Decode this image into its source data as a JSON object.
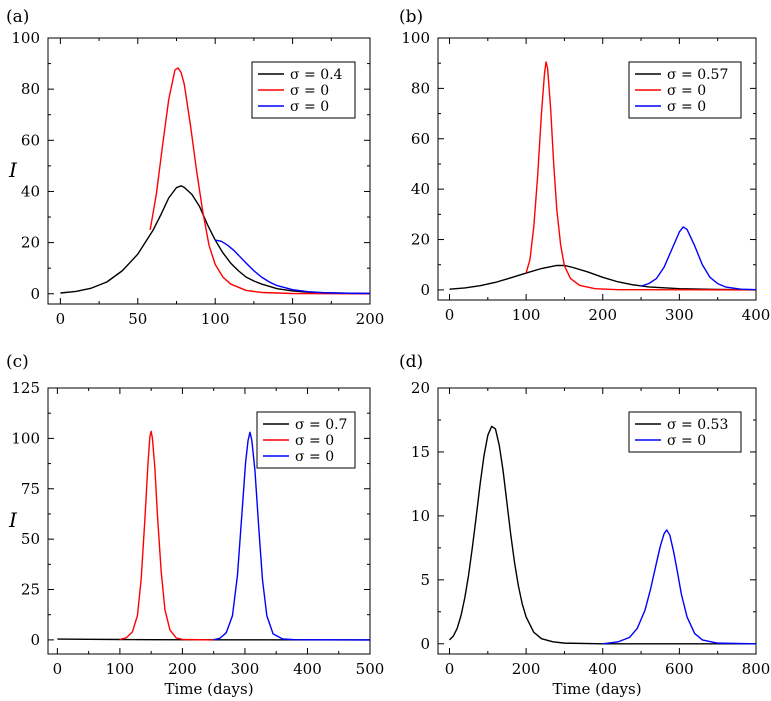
{
  "chart_data": [
    {
      "type": "line",
      "panel_label": "(a)",
      "xlabel": "",
      "ylabel": "I",
      "xlim": [
        -8,
        200
      ],
      "ylim": [
        -4,
        100
      ],
      "x_ticks": [
        0,
        50,
        100,
        150,
        200
      ],
      "y_ticks": [
        0,
        20,
        40,
        60,
        80,
        100
      ],
      "legend_position": "top-right",
      "series": [
        {
          "name": "σ = 0.4",
          "color": "#000000",
          "points": [
            [
              0,
              0.3
            ],
            [
              10,
              0.9
            ],
            [
              20,
              2.2
            ],
            [
              30,
              4.6
            ],
            [
              40,
              9.0
            ],
            [
              50,
              15.5
            ],
            [
              60,
              25.0
            ],
            [
              65,
              31.0
            ],
            [
              70,
              37.5
            ],
            [
              75,
              41.5
            ],
            [
              78,
              42.2
            ],
            [
              80,
              41.6
            ],
            [
              85,
              38.8
            ],
            [
              90,
              34.0
            ],
            [
              95,
              27.0
            ],
            [
              100,
              21.0
            ],
            [
              105,
              16.0
            ],
            [
              110,
              12.0
            ],
            [
              115,
              9.0
            ],
            [
              120,
              6.5
            ],
            [
              125,
              5.0
            ],
            [
              130,
              3.8
            ],
            [
              140,
              2.0
            ],
            [
              150,
              1.1
            ],
            [
              160,
              0.6
            ],
            [
              175,
              0.3
            ],
            [
              200,
              0.1
            ]
          ]
        },
        {
          "name": "σ = 0",
          "color": "#ff0000",
          "points": [
            [
              58,
              25.0
            ],
            [
              62,
              39.0
            ],
            [
              66,
              58.0
            ],
            [
              70,
              76.0
            ],
            [
              74,
              87.5
            ],
            [
              76,
              88.3
            ],
            [
              78,
              86.5
            ],
            [
              80,
              82.0
            ],
            [
              84,
              66.0
            ],
            [
              88,
              48.0
            ],
            [
              92,
              32.0
            ],
            [
              96,
              19.0
            ],
            [
              100,
              11.5
            ],
            [
              105,
              6.5
            ],
            [
              110,
              3.8
            ],
            [
              120,
              1.3
            ],
            [
              130,
              0.5
            ],
            [
              150,
              0.1
            ],
            [
              200,
              0.0
            ]
          ]
        },
        {
          "name": "σ = 0",
          "color": "#0000ff",
          "points": [
            [
              100,
              21.0
            ],
            [
              104,
              20.5
            ],
            [
              108,
              19.0
            ],
            [
              112,
              17.0
            ],
            [
              116,
              14.5
            ],
            [
              120,
              12.0
            ],
            [
              125,
              9.0
            ],
            [
              130,
              6.5
            ],
            [
              135,
              4.6
            ],
            [
              140,
              3.2
            ],
            [
              150,
              1.6
            ],
            [
              160,
              0.8
            ],
            [
              170,
              0.4
            ],
            [
              185,
              0.2
            ],
            [
              200,
              0.1
            ]
          ]
        }
      ]
    },
    {
      "type": "line",
      "panel_label": "(b)",
      "xlabel": "",
      "ylabel": "",
      "xlim": [
        -15,
        400
      ],
      "ylim": [
        -4,
        100
      ],
      "x_ticks": [
        0,
        100,
        200,
        300,
        400
      ],
      "y_ticks": [
        0,
        20,
        40,
        60,
        80,
        100
      ],
      "legend_position": "top-right",
      "series": [
        {
          "name": "σ = 0.57",
          "color": "#000000",
          "points": [
            [
              0,
              0.3
            ],
            [
              20,
              0.8
            ],
            [
              40,
              1.7
            ],
            [
              60,
              3.0
            ],
            [
              80,
              4.8
            ],
            [
              100,
              6.7
            ],
            [
              120,
              8.5
            ],
            [
              140,
              9.7
            ],
            [
              150,
              9.7
            ],
            [
              160,
              9.0
            ],
            [
              180,
              7.2
            ],
            [
              200,
              5.0
            ],
            [
              220,
              3.2
            ],
            [
              240,
              2.0
            ],
            [
              260,
              1.2
            ],
            [
              300,
              0.5
            ],
            [
              350,
              0.2
            ],
            [
              400,
              0.1
            ]
          ]
        },
        {
          "name": "σ = 0",
          "color": "#ff0000",
          "points": [
            [
              100,
              6.7
            ],
            [
              105,
              12.0
            ],
            [
              110,
              25.0
            ],
            [
              115,
              45.0
            ],
            [
              120,
              70.0
            ],
            [
              124,
              86.0
            ],
            [
              126,
              90.5
            ],
            [
              128,
              88.0
            ],
            [
              132,
              72.0
            ],
            [
              136,
              50.0
            ],
            [
              140,
              32.0
            ],
            [
              145,
              18.0
            ],
            [
              150,
              9.5
            ],
            [
              158,
              4.5
            ],
            [
              170,
              1.8
            ],
            [
              190,
              0.5
            ],
            [
              220,
              0.1
            ],
            [
              400,
              0.0
            ]
          ]
        },
        {
          "name": "σ = 0",
          "color": "#0000ff",
          "points": [
            [
              250,
              1.5
            ],
            [
              260,
              2.5
            ],
            [
              270,
              4.5
            ],
            [
              280,
              9.0
            ],
            [
              290,
              16.0
            ],
            [
              300,
              23.0
            ],
            [
              305,
              25.0
            ],
            [
              310,
              24.0
            ],
            [
              320,
              17.5
            ],
            [
              330,
              10.0
            ],
            [
              340,
              5.0
            ],
            [
              350,
              2.5
            ],
            [
              360,
              1.2
            ],
            [
              380,
              0.3
            ],
            [
              400,
              0.1
            ]
          ]
        }
      ]
    },
    {
      "type": "line",
      "panel_label": "(c)",
      "xlabel": "Time (days)",
      "ylabel": "I",
      "xlim": [
        -15,
        500
      ],
      "ylim": [
        -7,
        125
      ],
      "x_ticks": [
        0,
        100,
        200,
        300,
        400,
        500
      ],
      "y_ticks": [
        0,
        25,
        50,
        75,
        100,
        125
      ],
      "legend_position": "top-right",
      "series": [
        {
          "name": "σ = 0.7",
          "color": "#000000",
          "points": [
            [
              0,
              0.4
            ],
            [
              50,
              0.3
            ],
            [
              100,
              0.2
            ],
            [
              150,
              0.1
            ],
            [
              250,
              0.05
            ],
            [
              500,
              0.0
            ]
          ]
        },
        {
          "name": "σ = 0",
          "color": "#ff0000",
          "points": [
            [
              100,
              0.2
            ],
            [
              110,
              1.0
            ],
            [
              120,
              4.0
            ],
            [
              128,
              12.0
            ],
            [
              134,
              30.0
            ],
            [
              140,
              60.0
            ],
            [
              145,
              88.0
            ],
            [
              148,
              101.0
            ],
            [
              150,
              103.5
            ],
            [
              152,
              100.0
            ],
            [
              156,
              85.0
            ],
            [
              160,
              62.0
            ],
            [
              166,
              34.0
            ],
            [
              172,
              15.0
            ],
            [
              180,
              5.0
            ],
            [
              190,
              1.0
            ],
            [
              200,
              0.2
            ],
            [
              250,
              0.0
            ]
          ]
        },
        {
          "name": "σ = 0",
          "color": "#0000ff",
          "points": [
            [
              250,
              0.1
            ],
            [
              260,
              0.8
            ],
            [
              270,
              3.5
            ],
            [
              280,
              12.0
            ],
            [
              288,
              32.0
            ],
            [
              295,
              62.0
            ],
            [
              301,
              88.0
            ],
            [
              305,
              99.0
            ],
            [
              308,
              103.0
            ],
            [
              311,
              99.0
            ],
            [
              316,
              84.0
            ],
            [
              322,
              56.0
            ],
            [
              328,
              30.0
            ],
            [
              335,
              12.0
            ],
            [
              345,
              3.0
            ],
            [
              360,
              0.5
            ],
            [
              380,
              0.1
            ],
            [
              500,
              0.0
            ]
          ]
        }
      ]
    },
    {
      "type": "line",
      "panel_label": "(d)",
      "xlabel": "Time (days)",
      "ylabel": "",
      "xlim": [
        -30,
        800
      ],
      "ylim": [
        -0.8,
        20
      ],
      "x_ticks": [
        0,
        200,
        400,
        600,
        800
      ],
      "y_ticks": [
        0,
        5,
        10,
        15,
        20
      ],
      "legend_position": "top-right",
      "series": [
        {
          "name": "σ = 0.53",
          "color": "#000000",
          "points": [
            [
              0,
              0.3
            ],
            [
              10,
              0.6
            ],
            [
              20,
              1.2
            ],
            [
              30,
              2.2
            ],
            [
              40,
              3.6
            ],
            [
              50,
              5.4
            ],
            [
              60,
              7.6
            ],
            [
              70,
              10.0
            ],
            [
              80,
              12.5
            ],
            [
              90,
              14.7
            ],
            [
              100,
              16.3
            ],
            [
              110,
              17.0
            ],
            [
              120,
              16.8
            ],
            [
              130,
              15.5
            ],
            [
              140,
              13.5
            ],
            [
              150,
              11.0
            ],
            [
              160,
              8.5
            ],
            [
              170,
              6.3
            ],
            [
              180,
              4.5
            ],
            [
              190,
              3.1
            ],
            [
              200,
              2.1
            ],
            [
              220,
              0.9
            ],
            [
              240,
              0.4
            ],
            [
              270,
              0.15
            ],
            [
              300,
              0.05
            ],
            [
              400,
              0.0
            ],
            [
              800,
              0.0
            ]
          ]
        },
        {
          "name": "σ = 0",
          "color": "#0000ff",
          "points": [
            [
              400,
              0.0
            ],
            [
              440,
              0.15
            ],
            [
              470,
              0.5
            ],
            [
              490,
              1.2
            ],
            [
              510,
              2.6
            ],
            [
              525,
              4.3
            ],
            [
              540,
              6.3
            ],
            [
              550,
              7.6
            ],
            [
              560,
              8.6
            ],
            [
              567,
              8.9
            ],
            [
              575,
              8.5
            ],
            [
              585,
              7.2
            ],
            [
              595,
              5.6
            ],
            [
              605,
              3.9
            ],
            [
              620,
              2.1
            ],
            [
              640,
              0.8
            ],
            [
              660,
              0.3
            ],
            [
              700,
              0.05
            ],
            [
              800,
              0.0
            ]
          ]
        }
      ]
    }
  ]
}
